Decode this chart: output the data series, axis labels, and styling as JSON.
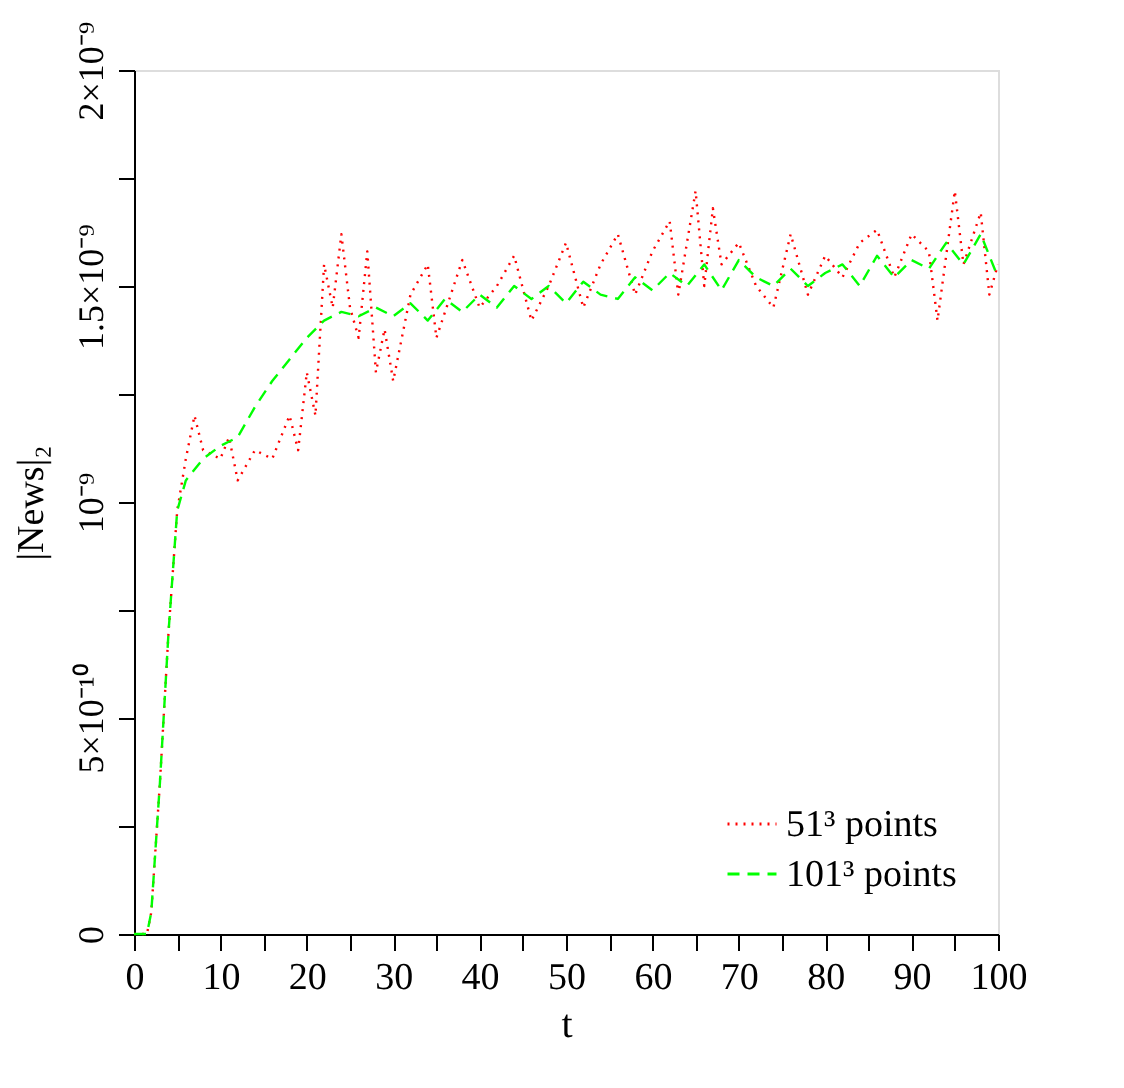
{
  "chart_data": {
    "type": "line",
    "xlabel": "t",
    "ylabel": "|News|₂",
    "xlim": [
      0,
      100
    ],
    "ylim": [
      0,
      2e-09
    ],
    "xticks": [
      0,
      {
        "value": 5,
        "label": null
      },
      10,
      {
        "value": 15,
        "label": null
      },
      20,
      {
        "value": 25,
        "label": null
      },
      30,
      {
        "value": 35,
        "label": null
      },
      40,
      {
        "value": 45,
        "label": null
      },
      50,
      {
        "value": 55,
        "label": null
      },
      60,
      {
        "value": 65,
        "label": null
      },
      70,
      {
        "value": 75,
        "label": null
      },
      80,
      {
        "value": 85,
        "label": null
      },
      90,
      {
        "value": 95,
        "label": null
      },
      100
    ],
    "yticks": [
      0,
      {
        "value": 2.5e-10,
        "label": null
      },
      {
        "value": 5e-10,
        "label": "5×10⁻¹⁰"
      },
      {
        "value": 7.5e-10,
        "label": null
      },
      {
        "value": 1e-09,
        "label": "10⁻⁹"
      },
      {
        "value": 1.25e-09,
        "label": null
      },
      {
        "value": 1.5e-09,
        "label": "1.5×10⁻⁹"
      },
      {
        "value": 1.75e-09,
        "label": null
      },
      {
        "value": 2e-09,
        "label": "2×10⁻⁹"
      }
    ],
    "legend": "bottom right",
    "grid": false,
    "marker": "none",
    "series": [
      {
        "name": "51³ points",
        "color": "#ff0000",
        "line_style": "dotted",
        "x": [
          0,
          1.5,
          2,
          3,
          4,
          5,
          6,
          7,
          8,
          10,
          11,
          12,
          14,
          16,
          18,
          19,
          20,
          21,
          22,
          23,
          24,
          25,
          26,
          27,
          28,
          29,
          30,
          32,
          34,
          35,
          38,
          40,
          42,
          44,
          46,
          48,
          50,
          52,
          54,
          56,
          58,
          60,
          62,
          63,
          65,
          66,
          67,
          68,
          70,
          72,
          74,
          76,
          78,
          80,
          82,
          84,
          86,
          88,
          90,
          92,
          93,
          95,
          96,
          98,
          99,
          100
        ],
        "values": [
          0,
          0,
          5e-11,
          3.5e-10,
          7e-10,
          9.8e-10,
          1.1e-09,
          1.2e-09,
          1.12e-09,
          1.1e-09,
          1.15e-09,
          1.05e-09,
          1.12e-09,
          1.1e-09,
          1.2e-09,
          1.12e-09,
          1.3e-09,
          1.2e-09,
          1.55e-09,
          1.45e-09,
          1.62e-09,
          1.45e-09,
          1.38e-09,
          1.58e-09,
          1.3e-09,
          1.4e-09,
          1.28e-09,
          1.48e-09,
          1.55e-09,
          1.38e-09,
          1.56e-09,
          1.45e-09,
          1.5e-09,
          1.57e-09,
          1.42e-09,
          1.5e-09,
          1.6e-09,
          1.45e-09,
          1.55e-09,
          1.62e-09,
          1.48e-09,
          1.58e-09,
          1.65e-09,
          1.48e-09,
          1.72e-09,
          1.5e-09,
          1.68e-09,
          1.55e-09,
          1.6e-09,
          1.5e-09,
          1.45e-09,
          1.62e-09,
          1.48e-09,
          1.57e-09,
          1.52e-09,
          1.6e-09,
          1.63e-09,
          1.52e-09,
          1.62e-09,
          1.58e-09,
          1.42e-09,
          1.72e-09,
          1.55e-09,
          1.67e-09,
          1.48e-09,
          1.55e-09
        ]
      },
      {
        "name": "101³ points",
        "color": "#00ff00",
        "line_style": "dashed",
        "x": [
          0,
          1.5,
          2,
          3,
          4,
          5,
          6,
          8,
          10,
          12,
          14,
          16,
          18,
          20,
          22,
          24,
          26,
          28,
          30,
          32,
          34,
          36,
          38,
          40,
          42,
          44,
          46,
          48,
          50,
          52,
          54,
          56,
          58,
          60,
          62,
          64,
          66,
          68,
          70,
          72,
          74,
          76,
          78,
          80,
          82,
          84,
          86,
          88,
          90,
          92,
          94,
          96,
          98,
          100
        ],
        "values": [
          0,
          0,
          5e-11,
          3.5e-10,
          7e-10,
          9.8e-10,
          1.05e-09,
          1.1e-09,
          1.13e-09,
          1.15e-09,
          1.22e-09,
          1.28e-09,
          1.33e-09,
          1.38e-09,
          1.42e-09,
          1.44e-09,
          1.43e-09,
          1.45e-09,
          1.43e-09,
          1.46e-09,
          1.42e-09,
          1.47e-09,
          1.44e-09,
          1.48e-09,
          1.45e-09,
          1.5e-09,
          1.47e-09,
          1.5e-09,
          1.46e-09,
          1.51e-09,
          1.48e-09,
          1.47e-09,
          1.52e-09,
          1.49e-09,
          1.53e-09,
          1.5e-09,
          1.55e-09,
          1.49e-09,
          1.56e-09,
          1.52e-09,
          1.5e-09,
          1.54e-09,
          1.5e-09,
          1.53e-09,
          1.55e-09,
          1.5e-09,
          1.57e-09,
          1.52e-09,
          1.56e-09,
          1.54e-09,
          1.6e-09,
          1.55e-09,
          1.62e-09,
          1.52e-09
        ]
      }
    ]
  }
}
